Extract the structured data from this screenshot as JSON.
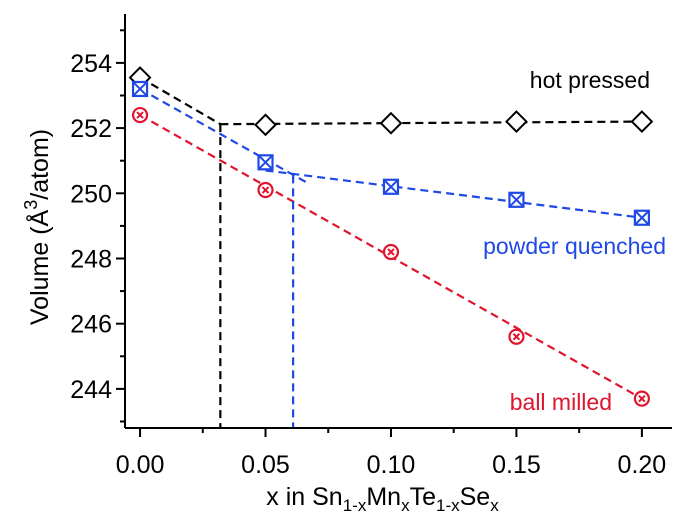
{
  "chart_data": {
    "type": "scatter",
    "xlabel": {
      "parts": [
        {
          "text": "x in Sn",
          "sub": false
        },
        {
          "text": "1-x",
          "sub": true
        },
        {
          "text": "Mn",
          "sub": false
        },
        {
          "text": "x",
          "sub": true
        },
        {
          "text": "Te",
          "sub": false
        },
        {
          "text": "1-x",
          "sub": true
        },
        {
          "text": "Se",
          "sub": false
        },
        {
          "text": "x",
          "sub": true
        }
      ]
    },
    "ylabel": {
      "parts": [
        {
          "text": "Volume (Å",
          "sup": false
        },
        {
          "text": "3",
          "sup": true
        },
        {
          "text": "/atom)",
          "sup": false
        }
      ]
    },
    "xlim": [
      -0.006,
      0.212
    ],
    "ylim": [
      242.8,
      255.5
    ],
    "xticks": [
      "0.00",
      "0.05",
      "0.10",
      "0.15",
      "0.20"
    ],
    "xtick_values": [
      0.0,
      0.05,
      0.1,
      0.15,
      0.2
    ],
    "yticks": [
      "244",
      "246",
      "248",
      "250",
      "252",
      "254"
    ],
    "ytick_values": [
      244,
      246,
      248,
      250,
      252,
      254
    ],
    "grid": false,
    "series": [
      {
        "name": "hot pressed",
        "color": "#000000",
        "marker": "diamond",
        "x": [
          0.0,
          0.05,
          0.1,
          0.15,
          0.2
        ],
        "y": [
          253.55,
          252.1,
          252.15,
          252.2,
          252.2
        ],
        "fit_segments": [
          {
            "x": [
              0.0,
              0.032
            ],
            "y": [
              253.55,
              252.12
            ]
          },
          {
            "x": [
              0.032,
              0.2
            ],
            "y": [
              252.12,
              252.2
            ]
          }
        ],
        "solubility_limit": {
          "x": 0.032,
          "y": 252.12
        }
      },
      {
        "name": "powder quenched",
        "color": "#1f49e6",
        "marker": "boxed-x",
        "x": [
          0.0,
          0.05,
          0.1,
          0.15,
          0.2
        ],
        "y": [
          253.2,
          250.95,
          250.2,
          249.8,
          249.25
        ],
        "fit_segments": [
          {
            "x": [
              0.0,
              0.066
            ],
            "y": [
              253.2,
              250.35
            ]
          },
          {
            "x": [
              0.05,
              0.2
            ],
            "y": [
              250.7,
              249.25
            ]
          }
        ],
        "solubility_limit": {
          "x": 0.061,
          "y": 250.55
        }
      },
      {
        "name": "ball milled",
        "color": "#e0142c",
        "marker": "circled-x",
        "x": [
          0.0,
          0.05,
          0.1,
          0.15,
          0.2
        ],
        "y": [
          252.4,
          250.1,
          248.2,
          245.6,
          243.7
        ],
        "fit_segments": [
          {
            "x": [
              0.0,
              0.2
            ],
            "y": [
              252.4,
              243.7
            ]
          }
        ]
      }
    ]
  }
}
